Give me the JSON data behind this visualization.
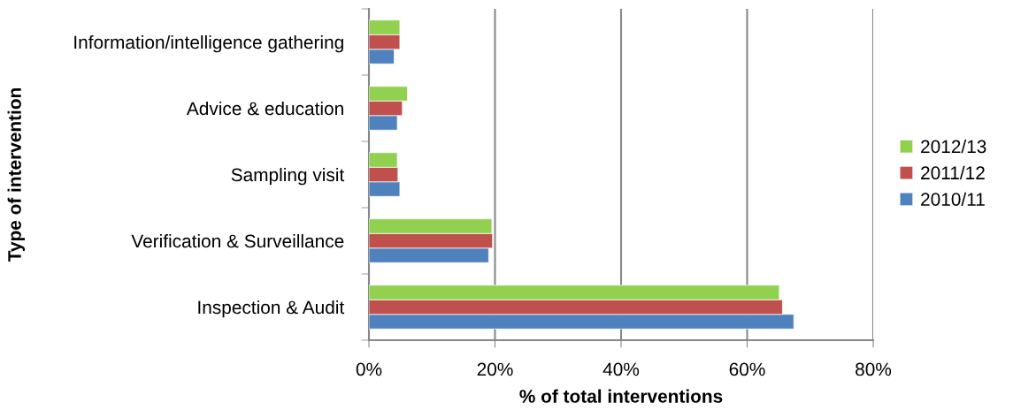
{
  "chart_data": {
    "type": "bar",
    "orientation": "horizontal",
    "xlabel": "% of total interventions",
    "ylabel": "Type of intervention",
    "categories": [
      "Information/intelligence gathering",
      "Advice & education",
      "Sampling visit",
      "Verification & Surveillance",
      "Inspection & Audit"
    ],
    "series": [
      {
        "name": "2010/11",
        "color": "#4f81bd",
        "values": [
          4.0,
          4.5,
          4.9,
          19.0,
          67.4
        ]
      },
      {
        "name": "2011/12",
        "color": "#c0504d",
        "values": [
          4.9,
          5.3,
          4.6,
          19.6,
          65.6
        ]
      },
      {
        "name": "2012/13",
        "color": "#92d050",
        "values": [
          4.9,
          6.1,
          4.5,
          19.5,
          65.1
        ]
      }
    ],
    "xlim": [
      0,
      80
    ],
    "xticks": [
      {
        "value": 0,
        "label": "0%"
      },
      {
        "value": 20,
        "label": "20%"
      },
      {
        "value": 40,
        "label": "40%"
      },
      {
        "value": 60,
        "label": "60%"
      },
      {
        "value": 80,
        "label": "80%"
      }
    ],
    "grid": "x",
    "legend": "right"
  }
}
